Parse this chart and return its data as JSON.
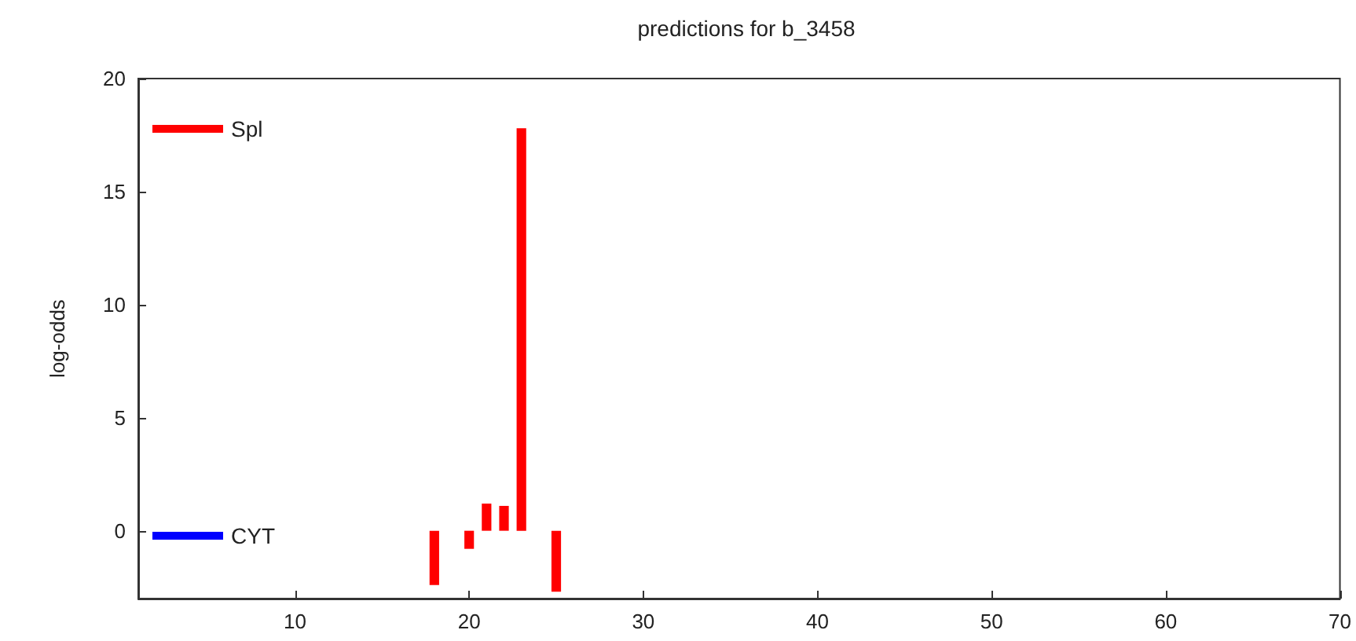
{
  "chart_data": {
    "type": "bar",
    "title": "predictions for b_3458",
    "ylabel": "log-odds",
    "x": [
      18,
      20,
      21,
      22,
      23,
      25
    ],
    "series": [
      {
        "name": "Spl",
        "color": "#ff0000",
        "values": [
          -2.4,
          -0.8,
          1.2,
          1.1,
          17.8,
          -2.7
        ]
      },
      {
        "name": "CYT",
        "color": "#0000ff",
        "values": [
          null,
          null,
          null,
          null,
          null,
          null
        ]
      }
    ],
    "xlim": [
      1,
      70
    ],
    "xticks": [
      10,
      20,
      30,
      40,
      50,
      60,
      70
    ],
    "ylim": [
      -3,
      20
    ],
    "yticks": [
      0,
      5,
      10,
      15,
      20
    ],
    "grid": false,
    "legend": "left"
  }
}
